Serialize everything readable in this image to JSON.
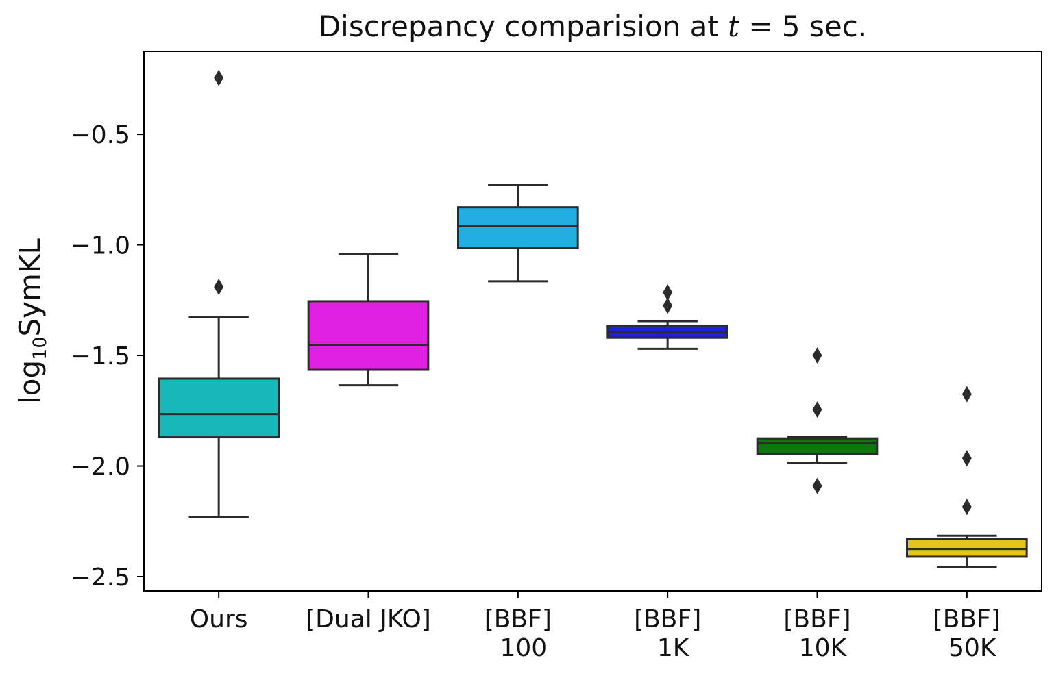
{
  "chart_data": {
    "type": "box",
    "title_prefix": "Discrepancy comparision at ",
    "title_var": "t",
    "title_eq": " = ",
    "title_value": "5",
    "title_suffix": " sec.",
    "ylabel_prefix": "log",
    "ylabel_sub": "10",
    "ylabel_suffix": "SymKL",
    "xlabel": "",
    "ylim": [
      -2.565,
      -0.125
    ],
    "yticks": [
      -0.5,
      -1.0,
      -1.5,
      -2.0,
      -2.5
    ],
    "ytick_labels": [
      "−0.5",
      "−1.0",
      "−1.5",
      "−2.0",
      "−2.5"
    ],
    "grid": false,
    "categories": [
      {
        "lines": [
          "Ours"
        ],
        "color": "#18b8b8",
        "q1": -1.87,
        "median": -1.765,
        "q3": -1.605,
        "whisker_low": -2.23,
        "whisker_high": -1.325,
        "outliers": [
          -0.245,
          -1.19
        ]
      },
      {
        "lines": [
          "[Dual JKO]"
        ],
        "color": "#e020e0",
        "q1": -1.565,
        "median": -1.455,
        "q3": -1.255,
        "whisker_low": -1.635,
        "whisker_high": -1.04,
        "outliers": []
      },
      {
        "lines": [
          "[BBF]",
          "100"
        ],
        "color": "#22aee0",
        "q1": -1.015,
        "median": -0.915,
        "q3": -0.83,
        "whisker_low": -1.165,
        "whisker_high": -0.73,
        "outliers": []
      },
      {
        "lines": [
          "[BBF]",
          "1K"
        ],
        "color": "#2020dc",
        "q1": -1.42,
        "median": -1.395,
        "q3": -1.365,
        "whisker_low": -1.47,
        "whisker_high": -1.345,
        "outliers": [
          -1.215,
          -1.275
        ]
      },
      {
        "lines": [
          "[BBF]",
          "10K"
        ],
        "color": "#0a780a",
        "q1": -1.945,
        "median": -1.895,
        "q3": -1.875,
        "whisker_low": -1.985,
        "whisker_high": -1.87,
        "outliers": [
          -1.5,
          -1.745,
          -2.09
        ]
      },
      {
        "lines": [
          "[BBF]",
          "50K"
        ],
        "color": "#e6c41a",
        "q1": -2.41,
        "median": -2.375,
        "q3": -2.33,
        "whisker_low": -2.455,
        "whisker_high": -2.315,
        "outliers": [
          -1.675,
          -1.965,
          -2.185
        ]
      }
    ]
  }
}
